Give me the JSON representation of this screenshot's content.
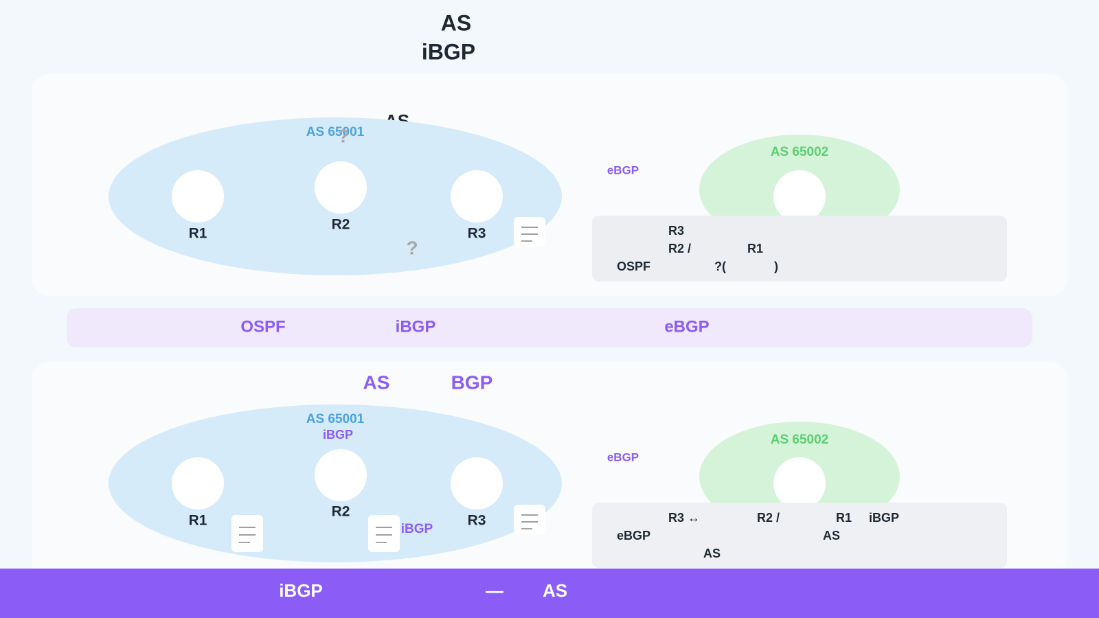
{
  "header": {
    "title_line1": "AS",
    "title_line2": "iBGP"
  },
  "panel_top": {
    "heading": "AS",
    "as1_label": "AS 65001",
    "as2_label": "AS 65002",
    "routers": [
      "R1",
      "R2",
      "R3"
    ],
    "question_marks": [
      "?",
      "?"
    ],
    "link_label": "eBGP",
    "note": {
      "line1": [
        "R3"
      ],
      "line2": [
        "R2 /",
        "R1"
      ],
      "line3": [
        "OSPF",
        "?(",
        ")"
      ]
    }
  },
  "legend": [
    "OSPF",
    "iBGP",
    "eBGP"
  ],
  "panel_bottom": {
    "heading": [
      "AS",
      "BGP"
    ],
    "as1_label": "AS 65001",
    "as1_sub": "iBGP",
    "as2_label": "AS 65002",
    "routers": [
      "R1",
      "R2",
      "R3"
    ],
    "ibgp_label": "iBGP",
    "link_label": "eBGP",
    "note": {
      "line1": [
        "R3 ↔",
        "R2 /",
        "R1",
        "iBGP"
      ],
      "line2": [
        "eBGP",
        "AS"
      ],
      "line3": [
        "AS"
      ]
    }
  },
  "footer": [
    "iBGP",
    "—",
    "AS"
  ]
}
